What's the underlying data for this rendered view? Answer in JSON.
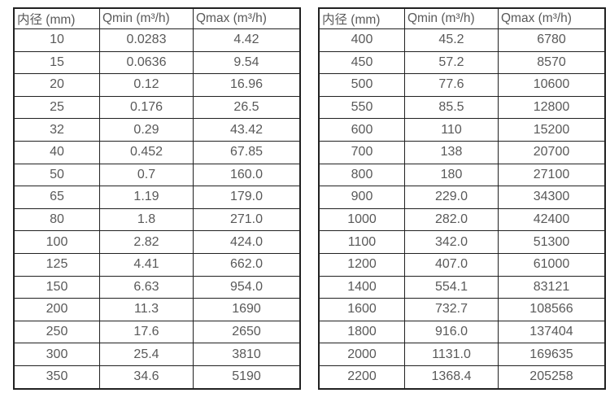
{
  "page": {
    "background_color": "#ffffff",
    "border_color": "#212121",
    "text_color": "#595959"
  },
  "chart_data": [
    {
      "type": "table",
      "name": "flow-rates-small-diameters",
      "columns": [
        "内径 (mm)",
        "Qmin (m³/h)",
        "Qmax (m³/h)"
      ],
      "rows": [
        [
          "10",
          "0.0283",
          "4.42"
        ],
        [
          "15",
          "0.0636",
          "9.54"
        ],
        [
          "20",
          "0.12",
          "16.96"
        ],
        [
          "25",
          "0.176",
          "26.5"
        ],
        [
          "32",
          "0.29",
          "43.42"
        ],
        [
          "40",
          "0.452",
          "67.85"
        ],
        [
          "50",
          "0.7",
          "160.0"
        ],
        [
          "65",
          "1.19",
          "179.0"
        ],
        [
          "80",
          "1.8",
          "271.0"
        ],
        [
          "100",
          "2.82",
          "424.0"
        ],
        [
          "125",
          "4.41",
          "662.0"
        ],
        [
          "150",
          "6.63",
          "954.0"
        ],
        [
          "200",
          "11.3",
          "1690"
        ],
        [
          "250",
          "17.6",
          "2650"
        ],
        [
          "300",
          "25.4",
          "3810"
        ],
        [
          "350",
          "34.6",
          "5190"
        ]
      ]
    },
    {
      "type": "table",
      "name": "flow-rates-large-diameters",
      "columns": [
        "内径 (mm)",
        "Qmin (m³/h)",
        "Qmax (m³/h)"
      ],
      "rows": [
        [
          "400",
          "45.2",
          "6780"
        ],
        [
          "450",
          "57.2",
          "8570"
        ],
        [
          "500",
          "77.6",
          "10600"
        ],
        [
          "550",
          "85.5",
          "12800"
        ],
        [
          "600",
          "110",
          "15200"
        ],
        [
          "700",
          "138",
          "20700"
        ],
        [
          "800",
          "180",
          "27100"
        ],
        [
          "900",
          "229.0",
          "34300"
        ],
        [
          "1000",
          "282.0",
          "42400"
        ],
        [
          "1100",
          "342.0",
          "51300"
        ],
        [
          "1200",
          "407.0",
          "61000"
        ],
        [
          "1400",
          "554.1",
          "83121"
        ],
        [
          "1600",
          "732.7",
          "108566"
        ],
        [
          "1800",
          "916.0",
          "137404"
        ],
        [
          "2000",
          "1131.0",
          "169635"
        ],
        [
          "2200",
          "1368.4",
          "205258"
        ]
      ]
    }
  ]
}
